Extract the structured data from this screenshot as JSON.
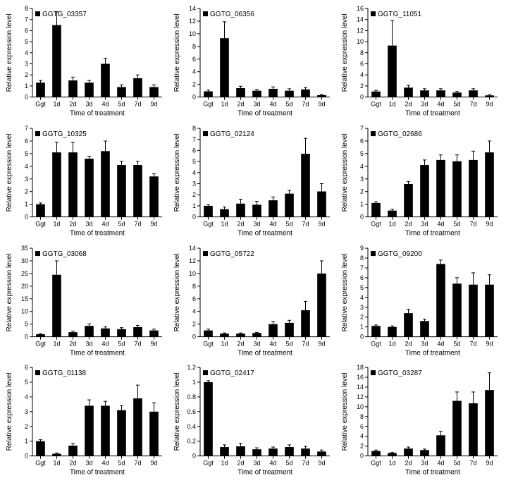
{
  "global": {
    "x_categories": [
      "Ggt",
      "1d",
      "2d",
      "3d",
      "4d",
      "5d",
      "7d",
      "9d"
    ],
    "x_axis_label": "Time of treatment",
    "y_axis_label": "Relative expression level",
    "bar_color": "#000000",
    "background_color": "#ffffff",
    "axis_color": "#000000",
    "text_color": "#000000",
    "axis_label_fontsize": 10,
    "tick_label_fontsize": 9,
    "title_fontsize": 10,
    "bar_width_ratio": 0.55,
    "error_cap_ratio": 0.4
  },
  "panels": [
    {
      "title": "GGTG_03357",
      "type": "bar",
      "ymax": 8,
      "ytick_step": 1,
      "values": [
        1.3,
        6.5,
        1.5,
        1.3,
        3.0,
        0.9,
        1.7,
        0.9
      ],
      "errors": [
        0.2,
        1.2,
        0.3,
        0.2,
        0.5,
        0.2,
        0.3,
        0.2
      ]
    },
    {
      "title": "GGTG_06356",
      "type": "bar",
      "ymax": 14,
      "ytick_step": 2,
      "values": [
        0.9,
        9.3,
        1.4,
        1.0,
        1.3,
        1.0,
        1.2,
        0.3
      ],
      "errors": [
        0.2,
        2.6,
        0.3,
        0.2,
        0.3,
        0.3,
        0.3,
        0.1
      ]
    },
    {
      "title": "GGTG_11051",
      "type": "bar",
      "ymax": 16,
      "ytick_step": 2,
      "values": [
        1.0,
        9.3,
        1.7,
        1.2,
        1.2,
        0.8,
        1.2,
        0.3
      ],
      "errors": [
        0.2,
        4.5,
        0.4,
        0.3,
        0.3,
        0.2,
        0.3,
        0.1
      ]
    },
    {
      "title": "GGTG_10325",
      "type": "bar",
      "ymax": 7,
      "ytick_step": 1,
      "values": [
        1.0,
        5.1,
        5.1,
        4.6,
        5.2,
        4.1,
        4.1,
        3.2
      ],
      "errors": [
        0.1,
        0.8,
        0.8,
        0.2,
        0.8,
        0.3,
        0.3,
        0.2
      ]
    },
    {
      "title": "GGTG_02124",
      "type": "bar",
      "ymax": 8,
      "ytick_step": 1,
      "values": [
        1.0,
        0.7,
        1.2,
        1.1,
        1.5,
        2.1,
        5.7,
        2.3
      ],
      "errors": [
        0.1,
        0.2,
        0.4,
        0.3,
        0.3,
        0.3,
        1.4,
        0.7
      ]
    },
    {
      "title": "GGTG_02686",
      "type": "bar",
      "ymax": 7,
      "ytick_step": 1,
      "values": [
        1.1,
        0.5,
        2.6,
        4.1,
        4.5,
        4.4,
        4.5,
        5.1
      ],
      "errors": [
        0.1,
        0.1,
        0.2,
        0.4,
        0.4,
        0.5,
        0.7,
        0.9
      ]
    },
    {
      "title": "GGTG_03068",
      "type": "bar",
      "ymax": 35,
      "ytick_step": 5,
      "values": [
        1.0,
        24.5,
        1.8,
        4.3,
        3.3,
        3.0,
        3.8,
        2.5
      ],
      "errors": [
        0.2,
        5.5,
        0.4,
        0.8,
        0.6,
        0.6,
        0.7,
        0.5
      ]
    },
    {
      "title": "GGTG_05722",
      "type": "bar",
      "ymax": 14,
      "ytick_step": 2,
      "values": [
        1.0,
        0.5,
        0.5,
        0.6,
        2.0,
        2.2,
        4.2,
        10.0
      ],
      "errors": [
        0.2,
        0.1,
        0.1,
        0.1,
        0.4,
        0.4,
        1.4,
        2.0
      ]
    },
    {
      "title": "GGTG_09200",
      "type": "bar",
      "ymax": 9,
      "ytick_step": 1,
      "values": [
        1.1,
        1.0,
        2.4,
        1.6,
        7.4,
        5.4,
        5.3,
        5.3
      ],
      "errors": [
        0.1,
        0.1,
        0.4,
        0.2,
        0.4,
        0.6,
        1.2,
        1.0
      ]
    },
    {
      "title": "GGTG_01138",
      "type": "bar",
      "ymax": 6,
      "ytick_step": 1,
      "values": [
        1.0,
        0.15,
        0.7,
        3.4,
        3.4,
        3.1,
        3.9,
        3.0
      ],
      "errors": [
        0.1,
        0.05,
        0.15,
        0.4,
        0.3,
        0.3,
        0.9,
        0.6
      ]
    },
    {
      "title": "GGTG_02417",
      "type": "bar",
      "ymax": 1.2,
      "ytick_step": 0.2,
      "values": [
        1.0,
        0.12,
        0.13,
        0.09,
        0.1,
        0.12,
        0.1,
        0.06
      ],
      "errors": [
        0.02,
        0.03,
        0.04,
        0.02,
        0.02,
        0.03,
        0.03,
        0.02
      ]
    },
    {
      "title": "GGTG_03287",
      "type": "bar",
      "ymax": 18,
      "ytick_step": 2,
      "values": [
        1.0,
        0.6,
        1.5,
        1.2,
        4.2,
        11.2,
        10.7,
        13.4
      ],
      "errors": [
        0.2,
        0.1,
        0.3,
        0.2,
        0.8,
        1.8,
        2.3,
        3.5
      ]
    }
  ]
}
